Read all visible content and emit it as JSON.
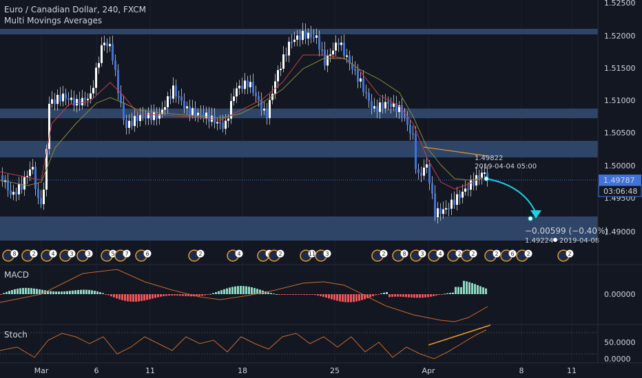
{
  "header": {
    "title": "Euro / Canadian Dollar, 240, FXCM",
    "indicator": "Multi Movings Averages"
  },
  "price_axis": {
    "ticks": [
      "1.52500",
      "1.52000",
      "1.51500",
      "1.51000",
      "1.50500",
      "1.50000",
      "1.49500",
      "1.49000"
    ],
    "last_price": "1.49787",
    "countdown": "03:06:48"
  },
  "annotations": {
    "high_label": "1.49822",
    "high_date": "2019-04-04 05:00",
    "change": "−0.00599 (−0.40%)",
    "target_price": "1.49224",
    "target_date": "2019-04-08"
  },
  "events": [
    "8",
    "2",
    "4",
    "3",
    "3",
    "5",
    "7",
    "6",
    "2",
    "4",
    "4",
    "2",
    "11",
    "3",
    "2",
    "8",
    "3",
    "4",
    "2",
    "2",
    "2",
    "6",
    "2",
    "2"
  ],
  "macd": {
    "label": "MACD",
    "tick": "0.00000"
  },
  "stoch": {
    "label": "Stoch",
    "ticks": [
      "50.0000",
      "0.0000"
    ]
  },
  "time_axis": {
    "labels": [
      "Mar",
      "6",
      "11",
      "18",
      "25",
      "Apr",
      "8",
      "11"
    ]
  },
  "colors": {
    "background": "#131722",
    "up": "#3f73d8",
    "zone": "#2e4568",
    "fast_ma": "#c43c4a",
    "slow_ma": "#8a8a3a",
    "projection": "#19d3e6",
    "trendline": "#f09a2a",
    "macd_line": "#c86a2c",
    "hist_up": "#8fd9c4",
    "hist_down": "#f0535a"
  }
}
